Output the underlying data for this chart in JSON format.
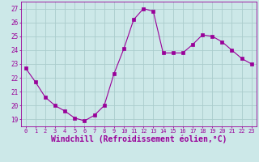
{
  "x": [
    0,
    1,
    2,
    3,
    4,
    5,
    6,
    7,
    8,
    9,
    10,
    11,
    12,
    13,
    14,
    15,
    16,
    17,
    18,
    19,
    20,
    21,
    22,
    23
  ],
  "y": [
    22.7,
    21.7,
    20.6,
    20.0,
    19.6,
    19.1,
    18.9,
    19.3,
    20.0,
    22.3,
    24.1,
    26.2,
    27.0,
    26.8,
    23.8,
    23.8,
    23.8,
    24.4,
    25.1,
    25.0,
    24.6,
    24.0,
    23.4,
    23.0
  ],
  "line_color": "#990099",
  "marker": "s",
  "marker_size": 2.5,
  "bg_color": "#cce8e8",
  "grid_color": "#aacccc",
  "xlabel": "Windchill (Refroidissement éolien,°C)",
  "xlabel_color": "#990099",
  "tick_color": "#990099",
  "ylim": [
    18.5,
    27.5
  ],
  "yticks": [
    19,
    20,
    21,
    22,
    23,
    24,
    25,
    26,
    27
  ],
  "xticks": [
    0,
    1,
    2,
    3,
    4,
    5,
    6,
    7,
    8,
    9,
    10,
    11,
    12,
    13,
    14,
    15,
    16,
    17,
    18,
    19,
    20,
    21,
    22,
    23
  ]
}
